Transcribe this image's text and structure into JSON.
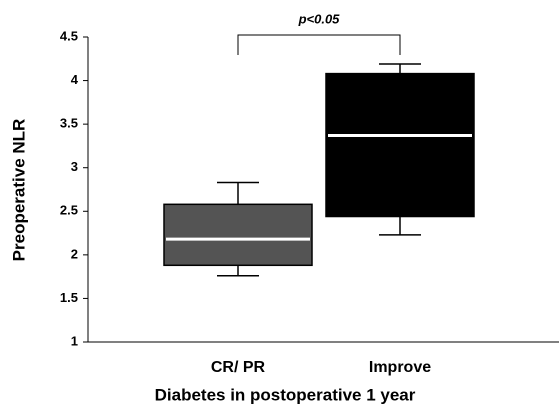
{
  "chart_data": {
    "type": "box",
    "x_label": "Diabetes in postoperative 1 year",
    "y_label": "Preoperative NLR",
    "annotation": "p<0.05",
    "categories": [
      "CR/ PR",
      "Improve"
    ],
    "low": [
      1.76,
      2.23
    ],
    "q1": [
      1.88,
      2.44
    ],
    "median": [
      2.18,
      3.37
    ],
    "q3": [
      2.58,
      4.08
    ],
    "high": [
      2.83,
      4.19
    ],
    "colors": [
      "#545454",
      "#000000"
    ],
    "median_color": "#ffffff",
    "ylim": [
      1,
      4.5
    ],
    "yticks": [
      1,
      1.5,
      2,
      2.5,
      3,
      3.5,
      4,
      4.5
    ]
  }
}
